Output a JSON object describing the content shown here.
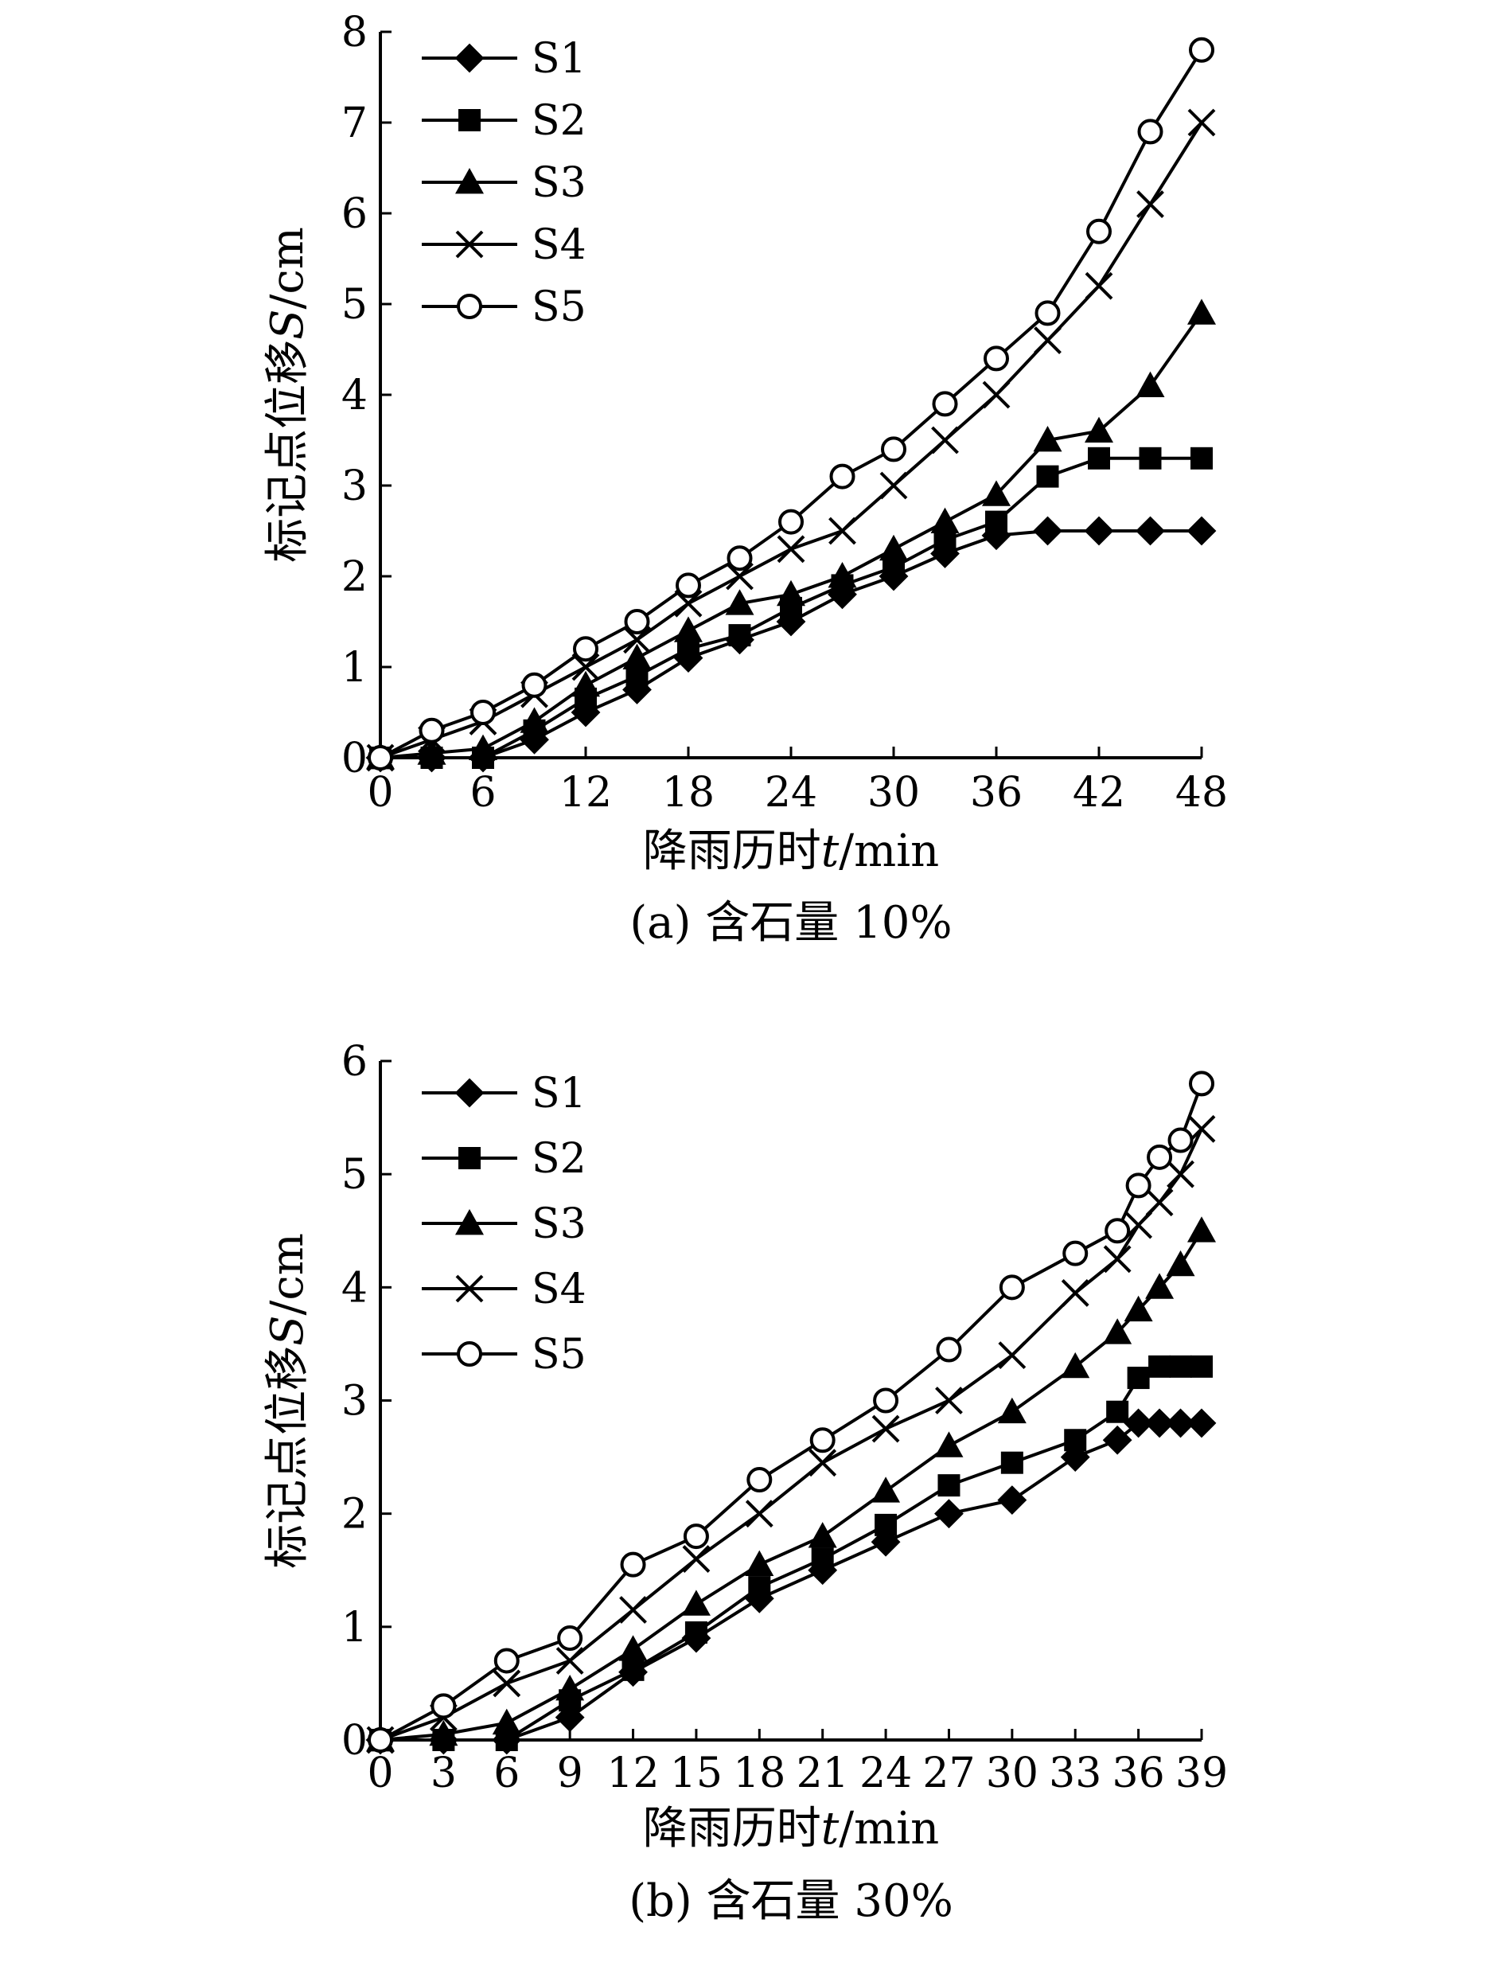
{
  "chart_data": [
    {
      "type": "line",
      "panel": "a",
      "caption": "(a) 含石量 10%",
      "xlabel_prefix": "降雨历时",
      "xlabel_var": "t",
      "xlabel_unit": "/min",
      "ylabel_prefix": "标记点位移",
      "ylabel_var": "S",
      "ylabel_unit": "/cm",
      "xlim": [
        0,
        48
      ],
      "ylim": [
        0,
        8
      ],
      "x_ticks": [
        0,
        6,
        12,
        18,
        24,
        30,
        36,
        42,
        48
      ],
      "y_ticks": [
        0,
        1,
        2,
        3,
        4,
        5,
        6,
        7,
        8
      ],
      "grid": false,
      "legend_position": "top-left",
      "x": [
        0,
        3,
        6,
        9,
        12,
        15,
        18,
        21,
        24,
        27,
        30,
        33,
        36,
        39,
        42,
        45,
        48
      ],
      "series": [
        {
          "name": "S1",
          "marker": "diamond",
          "values": [
            0,
            0,
            0,
            0.2,
            0.5,
            0.75,
            1.1,
            1.3,
            1.5,
            1.8,
            2.0,
            2.25,
            2.45,
            2.5,
            2.5,
            2.5,
            2.5
          ]
        },
        {
          "name": "S2",
          "marker": "square",
          "values": [
            0,
            0,
            0,
            0.3,
            0.65,
            0.9,
            1.2,
            1.35,
            1.65,
            1.9,
            2.1,
            2.4,
            2.6,
            3.1,
            3.3,
            3.3,
            3.3
          ]
        },
        {
          "name": "S3",
          "marker": "triangle",
          "values": [
            0,
            0.05,
            0.1,
            0.4,
            0.8,
            1.1,
            1.4,
            1.7,
            1.8,
            2.0,
            2.3,
            2.6,
            2.9,
            3.5,
            3.6,
            4.1,
            4.9
          ]
        },
        {
          "name": "S4",
          "marker": "cross",
          "values": [
            0,
            0.2,
            0.4,
            0.7,
            1.0,
            1.3,
            1.7,
            2.0,
            2.3,
            2.5,
            3.0,
            3.5,
            4.0,
            4.6,
            5.2,
            6.1,
            7.0
          ]
        },
        {
          "name": "S5",
          "marker": "circle",
          "values": [
            0,
            0.3,
            0.5,
            0.8,
            1.2,
            1.5,
            1.9,
            2.2,
            2.6,
            3.1,
            3.4,
            3.9,
            4.4,
            4.9,
            5.8,
            6.9,
            7.8
          ]
        }
      ]
    },
    {
      "type": "line",
      "panel": "b",
      "caption": "(b) 含石量 30%",
      "xlabel_prefix": "降雨历时",
      "xlabel_var": "t",
      "xlabel_unit": "/min",
      "ylabel_prefix": "标记点位移",
      "ylabel_var": "S",
      "ylabel_unit": "/cm",
      "xlim": [
        0,
        39
      ],
      "ylim": [
        0,
        6
      ],
      "x_ticks": [
        0,
        3,
        6,
        9,
        12,
        15,
        18,
        21,
        24,
        27,
        30,
        33,
        36,
        39
      ],
      "y_ticks": [
        0,
        1,
        2,
        3,
        4,
        5,
        6
      ],
      "grid": false,
      "legend_position": "top-left",
      "series": [
        {
          "name": "S1",
          "marker": "diamond",
          "x": [
            0,
            3,
            6,
            9,
            12,
            15,
            18,
            21,
            24,
            27,
            30,
            33,
            35,
            36,
            37,
            38,
            39
          ],
          "values": [
            0,
            0,
            0,
            0.2,
            0.6,
            0.9,
            1.25,
            1.5,
            1.75,
            2.0,
            2.12,
            2.5,
            2.65,
            2.8,
            2.8,
            2.8,
            2.8
          ]
        },
        {
          "name": "S2",
          "marker": "square",
          "x": [
            0,
            3,
            6,
            9,
            12,
            15,
            18,
            21,
            24,
            27,
            30,
            33,
            35,
            36,
            37,
            38,
            39
          ],
          "values": [
            0,
            0,
            0,
            0.35,
            0.62,
            0.95,
            1.35,
            1.6,
            1.9,
            2.25,
            2.45,
            2.65,
            2.9,
            3.2,
            3.3,
            3.3,
            3.3
          ]
        },
        {
          "name": "S3",
          "marker": "triangle",
          "x": [
            0,
            3,
            6,
            9,
            12,
            15,
            18,
            21,
            24,
            27,
            30,
            33,
            35,
            36,
            37,
            38,
            39
          ],
          "values": [
            0,
            0.05,
            0.15,
            0.45,
            0.8,
            1.2,
            1.55,
            1.8,
            2.2,
            2.6,
            2.9,
            3.3,
            3.6,
            3.8,
            4.0,
            4.2,
            4.5
          ]
        },
        {
          "name": "S4",
          "marker": "cross",
          "x": [
            0,
            3,
            6,
            9,
            12,
            15,
            18,
            21,
            24,
            27,
            30,
            33,
            35,
            36,
            37,
            38,
            39
          ],
          "values": [
            0,
            0.2,
            0.5,
            0.7,
            1.15,
            1.6,
            2.0,
            2.45,
            2.75,
            3.0,
            3.4,
            3.95,
            4.25,
            4.55,
            4.75,
            5.0,
            5.4
          ]
        },
        {
          "name": "S5",
          "marker": "circle",
          "x": [
            0,
            3,
            6,
            9,
            12,
            15,
            18,
            21,
            24,
            27,
            30,
            33,
            35,
            36,
            37,
            38,
            39
          ],
          "values": [
            0,
            0.3,
            0.7,
            0.9,
            1.55,
            1.8,
            2.3,
            2.65,
            3.0,
            3.45,
            4.0,
            4.3,
            4.5,
            4.9,
            5.15,
            5.3,
            5.8
          ]
        }
      ]
    }
  ]
}
